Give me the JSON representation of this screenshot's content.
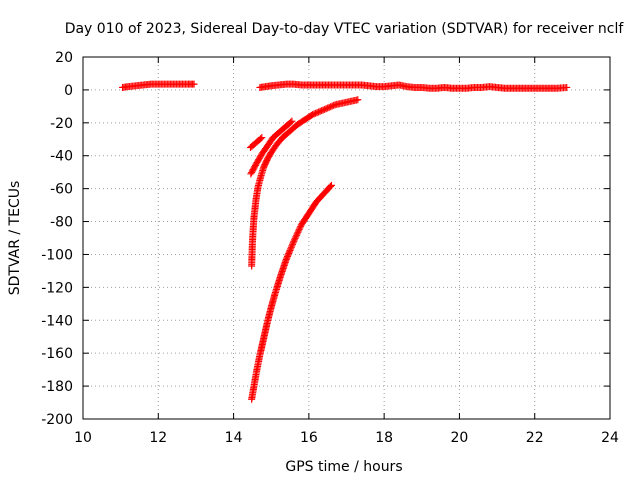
{
  "chart_data": {
    "type": "scatter",
    "title": "Day 010 of 2023, Sidereal Day-to-day VTEC variation (SDTVAR) for receiver nclf",
    "xlabel": "GPS time / hours",
    "ylabel": "SDTVAR / TECUs",
    "xlim": [
      10,
      24
    ],
    "ylim": [
      -200,
      20
    ],
    "x_ticks": [
      10,
      12,
      14,
      16,
      18,
      20,
      22,
      24
    ],
    "y_ticks": [
      20,
      0,
      -20,
      -40,
      -60,
      -80,
      -100,
      -120,
      -140,
      -160,
      -180,
      -200
    ],
    "x_tick_labels": [
      "10",
      "12",
      "14",
      "16",
      "18",
      "20",
      "22",
      "24"
    ],
    "y_tick_labels": [
      "20",
      "0",
      "-20",
      "-40",
      "-60",
      "-80",
      "-100",
      "-120",
      "-140",
      "-160",
      "-180",
      "-200"
    ],
    "grid": true,
    "marker": "plus",
    "color": "#ff0000",
    "series": [
      {
        "x": [
          11.05,
          11.2,
          11.4,
          11.6,
          11.8,
          12.0,
          12.2,
          12.4,
          12.6,
          12.8,
          12.95
        ],
        "y": [
          1.5,
          2.0,
          2.5,
          3.0,
          3.5,
          3.5,
          3.5,
          3.5,
          3.5,
          3.5,
          3.5
        ]
      },
      {
        "x": [
          14.7,
          14.85,
          15.0,
          15.2,
          15.4,
          15.6,
          15.8,
          16.0,
          16.2,
          16.4,
          16.6,
          16.8,
          17.0,
          17.2,
          17.4,
          17.6,
          17.8,
          18.0,
          18.2,
          18.4,
          18.6,
          18.8,
          19.0,
          19.2,
          19.4,
          19.6,
          19.8,
          20.0,
          20.2,
          20.4,
          20.6,
          20.8,
          21.0,
          21.2,
          21.4,
          21.6,
          21.8,
          22.0,
          22.2,
          22.4,
          22.6,
          22.85
        ],
        "y": [
          1.5,
          2.0,
          2.5,
          3.0,
          3.5,
          3.5,
          3.0,
          3.0,
          3.0,
          3.0,
          3.0,
          3.0,
          3.0,
          3.0,
          3.0,
          2.5,
          2.0,
          2.0,
          2.5,
          3.0,
          2.0,
          1.5,
          1.5,
          1.0,
          1.0,
          1.5,
          1.0,
          1.0,
          1.0,
          1.5,
          1.5,
          2.0,
          1.5,
          1.0,
          1.0,
          1.0,
          1.0,
          1.0,
          1.0,
          1.0,
          1.0,
          1.5
        ]
      },
      {
        "x": [
          14.45,
          14.55,
          14.65,
          14.75
        ],
        "y": [
          -35,
          -33,
          -31,
          -29
        ]
      },
      {
        "x": [
          14.46,
          14.6,
          14.75,
          14.9,
          15.05,
          15.2,
          15.35,
          15.55
        ],
        "y": [
          -51,
          -45,
          -39,
          -34,
          -29,
          -26,
          -23,
          -19
        ]
      },
      {
        "x": [
          14.48,
          14.49,
          14.5,
          14.52,
          14.54,
          14.57,
          14.6,
          14.65,
          14.72,
          14.8,
          14.9,
          15.0,
          15.15,
          15.3,
          15.5,
          15.7,
          15.9,
          16.1,
          16.3,
          16.5,
          16.7,
          16.9,
          17.1,
          17.3
        ],
        "y": [
          -107,
          -100,
          -93,
          -85,
          -78,
          -72,
          -66,
          -59,
          -53,
          -47,
          -42,
          -38,
          -33,
          -29,
          -25,
          -21,
          -18,
          -15,
          -13,
          -11,
          -9,
          -8,
          -7,
          -6
        ]
      },
      {
        "x": [
          14.48,
          14.55,
          14.62,
          14.7,
          14.8,
          14.9,
          15.0,
          15.1,
          15.25,
          15.4,
          15.6,
          15.8,
          16.0,
          16.2,
          16.4,
          16.6
        ],
        "y": [
          -188,
          -179,
          -170,
          -161,
          -151,
          -141,
          -132,
          -124,
          -113,
          -103,
          -92,
          -82,
          -75,
          -68,
          -63,
          -58
        ]
      }
    ]
  }
}
